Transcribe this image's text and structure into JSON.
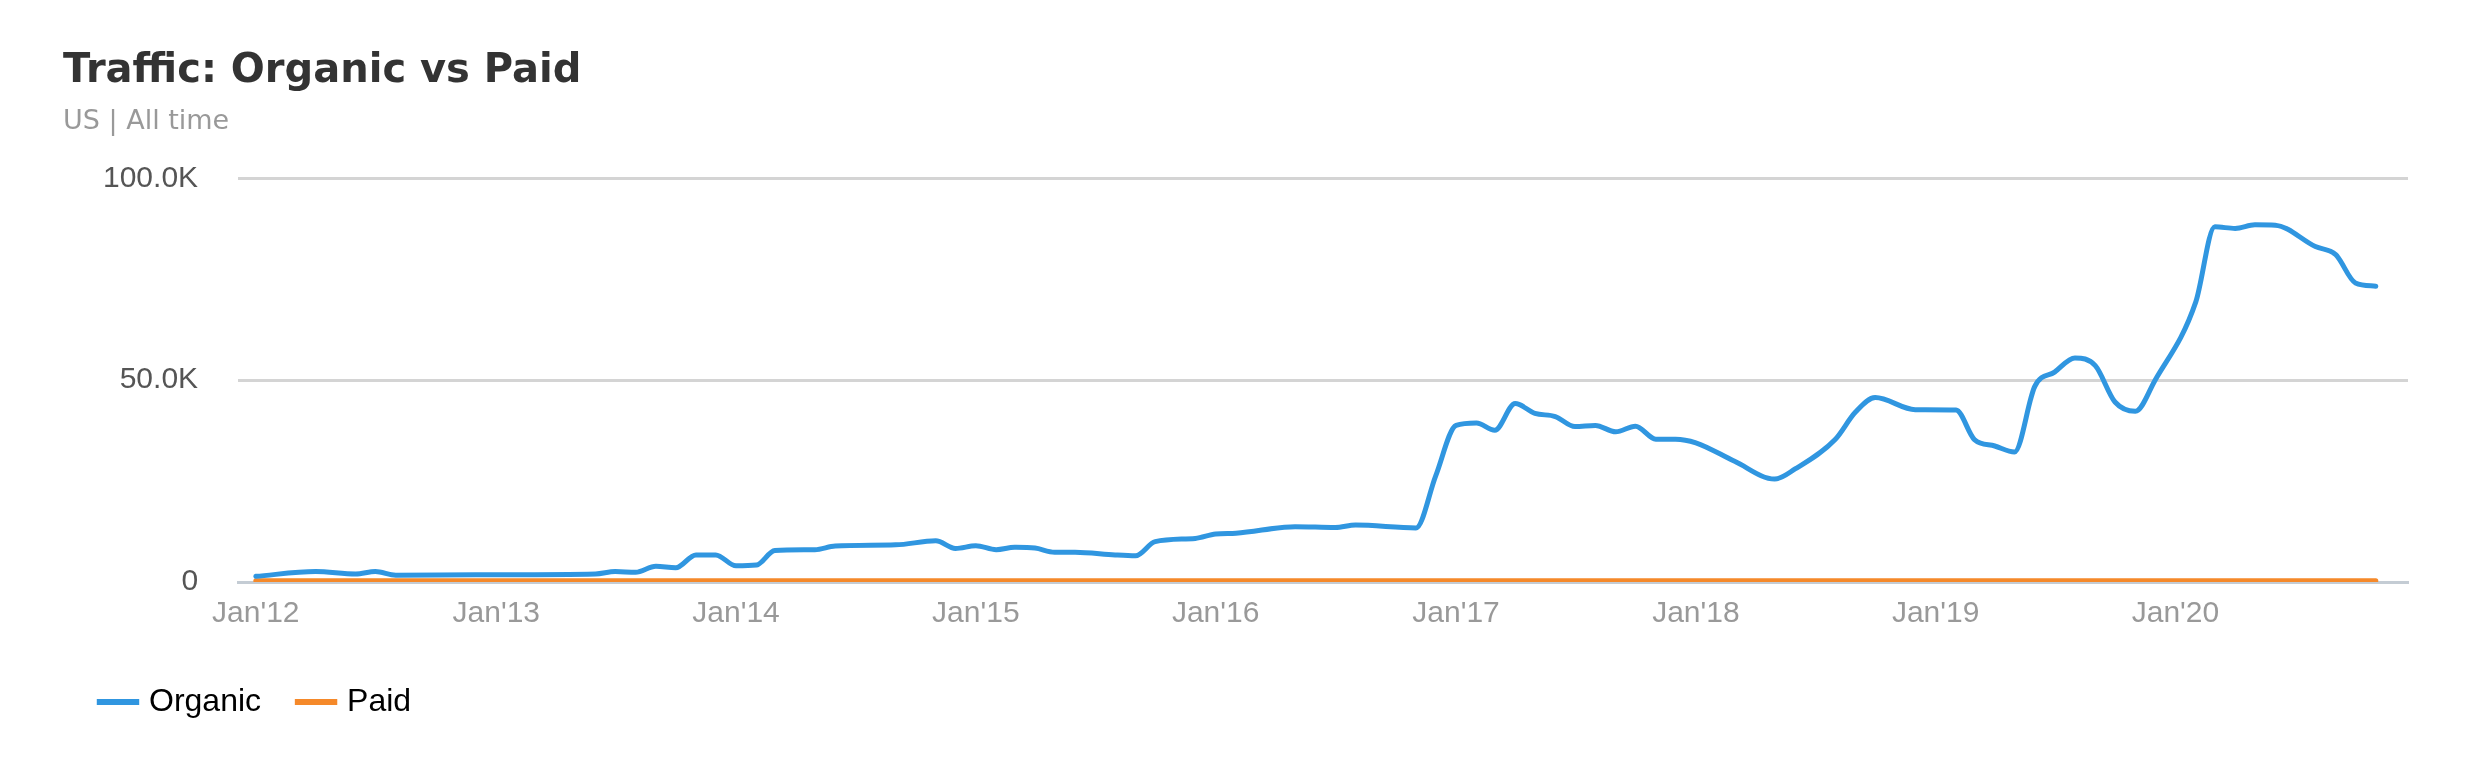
{
  "chart_data": {
    "type": "line",
    "title": "Traffic: Organic vs Paid",
    "subtitle": "US | All time",
    "xlim": [
      "2011-12-05",
      "2020-12-20"
    ],
    "xticks": [
      {
        "value": "2012-01",
        "label": "Jan'12"
      },
      {
        "value": "2013-01",
        "label": "Jan'13"
      },
      {
        "value": "2014-01",
        "label": "Jan'14"
      },
      {
        "value": "2015-01",
        "label": "Jan'15"
      },
      {
        "value": "2016-01",
        "label": "Jan'16"
      },
      {
        "value": "2017-01",
        "label": "Jan'17"
      },
      {
        "value": "2018-01",
        "label": "Jan'18"
      },
      {
        "value": "2019-01",
        "label": "Jan'19"
      },
      {
        "value": "2020-01",
        "label": "Jan'20"
      }
    ],
    "ylim": [
      0,
      100000
    ],
    "yticks": [
      0,
      {
        "value": 50000,
        "label": "50.0K"
      },
      {
        "value": 100000,
        "label": "100.0K"
      }
    ],
    "grid": "y",
    "legend": "bottom left",
    "line_style": "solid",
    "series": [
      {
        "name": "Organic",
        "color": "#3096e0",
        "x": [
          "2012-01",
          "2012-04",
          "2012-06",
          "2012-07",
          "2012-08",
          "2012-12",
          "2013-06",
          "2013-07",
          "2013-08",
          "2013-09",
          "2013-10",
          "2013-11",
          "2013-12",
          "2014-01",
          "2014-02",
          "2014-03",
          "2014-05",
          "2014-06",
          "2014-09",
          "2014-11",
          "2014-12",
          "2015-01",
          "2015-02",
          "2015-03",
          "2015-04",
          "2015-05",
          "2015-06",
          "2015-08",
          "2015-09",
          "2015-10",
          "2015-12",
          "2016-01",
          "2016-02",
          "2016-05",
          "2016-07",
          "2016-08",
          "2016-11",
          "2016-12",
          "2017-01",
          "2017-02",
          "2017-03",
          "2017-04",
          "2017-05",
          "2017-06",
          "2017-07",
          "2017-08",
          "2017-09",
          "2017-10",
          "2017-11",
          "2017-12",
          "2018-01",
          "2018-03",
          "2018-05",
          "2018-06",
          "2018-08",
          "2018-09",
          "2018-10",
          "2018-12",
          "2019-02",
          "2019-03",
          "2019-04",
          "2019-05",
          "2019-06",
          "2019-07",
          "2019-08",
          "2019-09",
          "2019-10",
          "2019-11",
          "2019-12",
          "2020-02",
          "2020-03",
          "2020-04",
          "2020-05",
          "2020-06",
          "2020-08",
          "2020-09",
          "2020-10",
          "2020-11"
        ],
        "values": [
          1400,
          2600,
          2000,
          2600,
          1700,
          1800,
          2000,
          2600,
          2400,
          3900,
          3500,
          6700,
          6700,
          4000,
          4200,
          7800,
          8000,
          8900,
          9200,
          10200,
          8300,
          9000,
          8000,
          8600,
          8400,
          7400,
          7400,
          6700,
          6500,
          10000,
          10800,
          11900,
          12100,
          13700,
          13500,
          14100,
          13400,
          26300,
          38800,
          39400,
          37600,
          44200,
          41800,
          41000,
          38500,
          38800,
          37200,
          38600,
          35400,
          35400,
          34500,
          29900,
          25500,
          28000,
          35300,
          42100,
          45700,
          42700,
          42600,
          35300,
          33700,
          32200,
          48500,
          52000,
          55500,
          53600,
          44600,
          42300,
          50000,
          69400,
          88000,
          87600,
          88500,
          88400,
          83100,
          81100,
          74100,
          73300
        ]
      },
      {
        "name": "Paid",
        "color": "#f5892a",
        "x": [
          "2012-01",
          "2020-11"
        ],
        "values": [
          300,
          300
        ]
      }
    ]
  }
}
